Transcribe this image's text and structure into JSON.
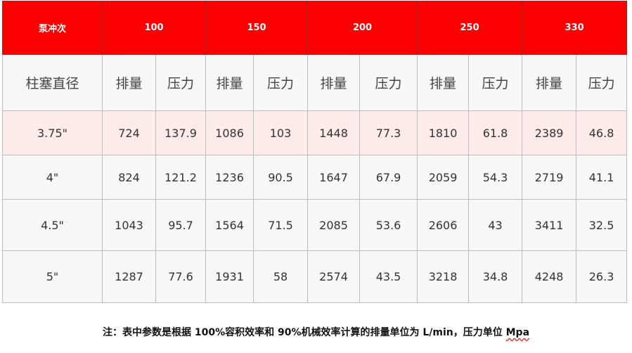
{
  "table": {
    "stroke_label": "泵冲次",
    "strokes": [
      "100",
      "150",
      "200",
      "250",
      "330"
    ],
    "plunger_label": "柱塞直径",
    "sub_headers": {
      "displacement": "排量",
      "pressure": "压力"
    },
    "rows": [
      {
        "diameter": "3.75\"",
        "values": [
          "724",
          "137.9",
          "1086",
          "103",
          "1448",
          "77.3",
          "1810",
          "61.8",
          "2389",
          "46.8"
        ]
      },
      {
        "diameter": "4\"",
        "values": [
          "824",
          "121.2",
          "1236",
          "90.5",
          "1647",
          "67.9",
          "2059",
          "54.3",
          "2719",
          "41.1"
        ]
      },
      {
        "diameter": "4.5\"",
        "values": [
          "1043",
          "95.7",
          "1564",
          "71.5",
          "2085",
          "53.6",
          "2606",
          "43",
          "3411",
          "32.5"
        ]
      },
      {
        "diameter": "5\"",
        "values": [
          "1287",
          "77.6",
          "1931",
          "58",
          "2574",
          "43.5",
          "3218",
          "34.8",
          "4248",
          "26.3"
        ]
      }
    ]
  },
  "note": {
    "text": "注：表中参数是根据 100%容积效率和 90%机械效率计算的排量单位为 L/min，压力单位 ",
    "unit": "Mpa"
  },
  "colors": {
    "header_red": "#fb0000",
    "highlight_row": "#fdeaea",
    "cell_bg": "#f7f7f7"
  }
}
